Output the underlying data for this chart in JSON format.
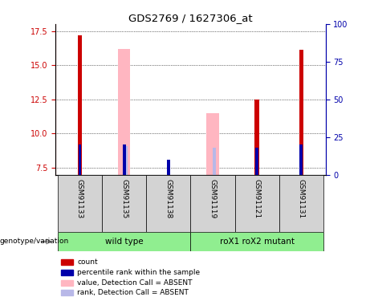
{
  "title": "GDS2769 / 1627306_at",
  "samples": [
    "GSM91133",
    "GSM91135",
    "GSM91138",
    "GSM91119",
    "GSM91121",
    "GSM91131"
  ],
  "ylim_left": [
    7.0,
    18.0
  ],
  "ylim_right": [
    0,
    100
  ],
  "yticks_left": [
    7.5,
    10.0,
    12.5,
    15.0,
    17.5
  ],
  "yticks_right": [
    0,
    25,
    50,
    75,
    100
  ],
  "bar_bottom": 7.0,
  "red_values": [
    17.2,
    7.3,
    7.3,
    7.3,
    12.5,
    16.1
  ],
  "pink_values": [
    7.3,
    16.2,
    7.3,
    11.5,
    7.3,
    7.3
  ],
  "blue_values_pct": [
    20,
    20,
    10,
    0,
    18,
    20
  ],
  "lavender_values_pct": [
    0,
    19,
    0,
    18,
    0,
    0
  ],
  "has_red": [
    true,
    false,
    false,
    false,
    true,
    true
  ],
  "has_pink": [
    false,
    true,
    false,
    true,
    false,
    false
  ],
  "has_blue": [
    true,
    true,
    true,
    false,
    true,
    true
  ],
  "has_lavender": [
    false,
    true,
    false,
    true,
    false,
    false
  ],
  "colors": {
    "red": "#cc0000",
    "pink": "#ffb6c1",
    "blue": "#0000aa",
    "lavender": "#b8b8e8",
    "background": "#ffffff",
    "sample_box_color": "#d3d3d3",
    "group_box_color": "#90ee90",
    "label_left_color": "#cc0000",
    "label_right_color": "#0000aa"
  },
  "legend_items": [
    {
      "label": "count",
      "color": "#cc0000"
    },
    {
      "label": "percentile rank within the sample",
      "color": "#0000aa"
    },
    {
      "label": "value, Detection Call = ABSENT",
      "color": "#ffb6c1"
    },
    {
      "label": "rank, Detection Call = ABSENT",
      "color": "#b8b8e8"
    }
  ],
  "group_wt_label": "wild type",
  "group_mut_label": "roX1 roX2 mutant",
  "genotype_label": "genotype/variation"
}
